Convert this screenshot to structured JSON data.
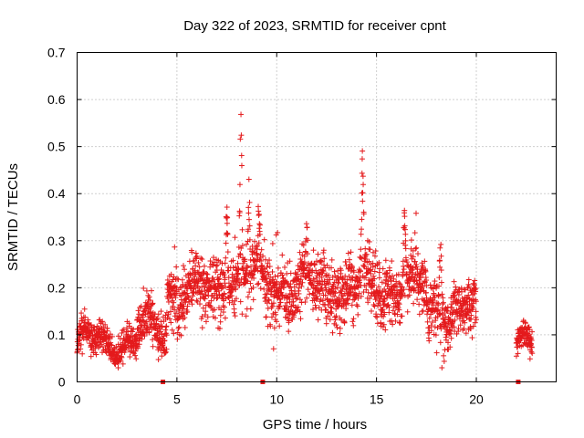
{
  "chart_data": {
    "type": "scatter",
    "title": "Day 322 of 2023, SRMTID for receiver cpnt",
    "xlabel": "GPS time / hours",
    "ylabel": "SRMTID / TECUs",
    "xlim": [
      0,
      24
    ],
    "ylim": [
      0,
      0.7
    ],
    "xticks": [
      0,
      5,
      10,
      15,
      20
    ],
    "xtick_labels": [
      "0",
      "5",
      "10",
      "15",
      "20"
    ],
    "yticks": [
      0,
      0.1,
      0.2,
      0.3,
      0.4,
      0.5,
      0.6,
      0.7
    ],
    "ytick_labels": [
      "0",
      "0.1",
      "0.2",
      "0.3",
      "0.4",
      "0.5",
      "0.6",
      "0.7"
    ],
    "grid": true,
    "marker": "+",
    "marker_color": "#e41a1c",
    "series": [
      {
        "name": "SRMTID",
        "color": "#e41a1c",
        "segments": [
          {
            "x_start": 0.0,
            "x_end": 3.0,
            "baseline": 0.085,
            "spread": 0.03
          },
          {
            "x_start": 3.0,
            "x_end": 4.5,
            "baseline": 0.11,
            "spread": 0.04
          },
          {
            "x_start": 4.5,
            "x_end": 7.0,
            "baseline": 0.19,
            "spread": 0.06
          },
          {
            "x_start": 7.0,
            "x_end": 10.0,
            "baseline": 0.21,
            "spread": 0.07
          },
          {
            "x_start": 10.0,
            "x_end": 14.0,
            "baseline": 0.2,
            "spread": 0.06
          },
          {
            "x_start": 14.0,
            "x_end": 17.5,
            "baseline": 0.2,
            "spread": 0.06
          },
          {
            "x_start": 17.5,
            "x_end": 20.0,
            "baseline": 0.15,
            "spread": 0.05
          },
          {
            "x_start": 22.0,
            "x_end": 22.8,
            "baseline": 0.075,
            "spread": 0.025
          }
        ],
        "peaks": [
          {
            "x": 7.5,
            "ymax": 0.43
          },
          {
            "x": 8.2,
            "ymax": 0.6
          },
          {
            "x": 8.6,
            "ymax": 0.44
          },
          {
            "x": 9.1,
            "ymax": 0.39
          },
          {
            "x": 11.5,
            "ymax": 0.37
          },
          {
            "x": 14.3,
            "ymax": 0.52
          },
          {
            "x": 16.4,
            "ymax": 0.38
          },
          {
            "x": 18.2,
            "ymax": 0.33
          }
        ]
      },
      {
        "name": "data-gap-markers",
        "color": "#e41a1c",
        "x": [
          4.3,
          9.3,
          22.1
        ],
        "y": [
          0,
          0,
          0
        ]
      }
    ]
  }
}
